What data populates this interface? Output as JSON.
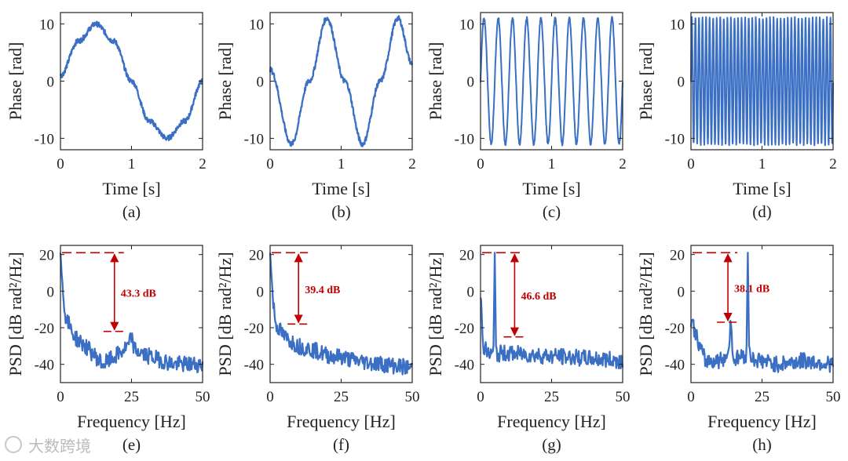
{
  "watermark": {
    "text": "大数跨境",
    "icon": "logo-badge-icon"
  },
  "colors": {
    "line": "#3a6fc4",
    "annotation": "#c00000",
    "axis": "#222222"
  },
  "chart_data": [
    {
      "type": "line",
      "caption": "(a)",
      "xlabel": "Time [s]",
      "ylabel": "Phase [rad]",
      "xlim": [
        0,
        2
      ],
      "ylim": [
        -12,
        12
      ],
      "xticks": [
        "0",
        "1",
        "2"
      ],
      "yticks": [
        "10",
        "0",
        "-10"
      ],
      "series": [
        {
          "x": [
            0,
            0.25,
            0.5,
            0.75,
            1.0,
            1.25,
            1.5,
            1.75,
            2.0
          ],
          "y": [
            1,
            7,
            10,
            7,
            0,
            -7,
            -10,
            -7,
            0
          ]
        }
      ],
      "grid": false
    },
    {
      "type": "line",
      "caption": "(b)",
      "xlabel": "Time [s]",
      "ylabel": "Phase [rad]",
      "xlim": [
        0,
        2
      ],
      "ylim": [
        -12,
        12
      ],
      "xticks": [
        "0",
        "1",
        "2"
      ],
      "yticks": [
        "10",
        "0",
        "-10"
      ],
      "series": [
        {
          "x": [
            0,
            0.3,
            0.55,
            0.8,
            1.05,
            1.3,
            1.55,
            1.8,
            2.0
          ],
          "y": [
            2,
            -11,
            0,
            11,
            0,
            -11,
            0,
            11,
            3
          ]
        }
      ],
      "grid": false
    },
    {
      "type": "line",
      "caption": "(c)",
      "xlabel": "Time [s]",
      "ylabel": "Phase [rad]",
      "xlim": [
        0,
        2
      ],
      "ylim": [
        -12,
        12
      ],
      "xticks": [
        "0",
        "1",
        "2"
      ],
      "yticks": [
        "10",
        "0",
        "-10"
      ],
      "series": [
        {
          "x": [
            0,
            0.5,
            1.0,
            1.5,
            2.0
          ],
          "y": [
            0,
            0,
            0,
            0,
            0
          ],
          "cycles": 10,
          "amplitude": 11
        }
      ],
      "grid": false
    },
    {
      "type": "line",
      "caption": "(d)",
      "xlabel": "Time [s]",
      "ylabel": "Phase [rad]",
      "xlim": [
        0,
        2
      ],
      "ylim": [
        -12,
        12
      ],
      "xticks": [
        "0",
        "1",
        "2"
      ],
      "yticks": [
        "10",
        "0",
        "-10"
      ],
      "series": [
        {
          "x": [
            0,
            0.5,
            1.0,
            1.5,
            2.0
          ],
          "y": [
            0,
            0,
            0,
            0,
            0
          ],
          "cycles": 40,
          "amplitude": 11
        }
      ],
      "grid": false
    },
    {
      "type": "line",
      "caption": "(e)",
      "xlabel": "Frequency [Hz]",
      "ylabel": "PSD [dB rad²/Hz]",
      "xlim": [
        0,
        50
      ],
      "ylim": [
        -50,
        25
      ],
      "xticks": [
        "0",
        "25",
        "50"
      ],
      "yticks": [
        "20",
        "0",
        "-20",
        "-40"
      ],
      "series": [
        {
          "x": [
            0,
            1,
            2,
            5,
            10,
            15,
            20,
            24,
            25,
            26,
            30,
            40,
            50
          ],
          "y": [
            21,
            -5,
            -15,
            -25,
            -32,
            -40,
            -35,
            -30,
            -25,
            -32,
            -35,
            -40,
            -40
          ]
        }
      ],
      "annotation": {
        "text": "43.3 dB",
        "top": 21,
        "bottom": -22,
        "x": 19
      },
      "grid": false
    },
    {
      "type": "line",
      "caption": "(f)",
      "xlabel": "Frequency [Hz]",
      "ylabel": "PSD [dB rad²/Hz]",
      "xlim": [
        0,
        50
      ],
      "ylim": [
        -50,
        25
      ],
      "xticks": [
        "0",
        "25",
        "50"
      ],
      "yticks": [
        "20",
        "0",
        "-20",
        "-40"
      ],
      "series": [
        {
          "x": [
            0,
            1,
            2,
            5,
            10,
            15,
            20,
            25,
            30,
            40,
            50
          ],
          "y": [
            21,
            -5,
            -18,
            -25,
            -30,
            -32,
            -35,
            -36,
            -38,
            -40,
            -42
          ]
        }
      ],
      "annotation": {
        "text": "39.4 dB",
        "top": 21,
        "bottom": -18,
        "x": 10
      },
      "grid": false
    },
    {
      "type": "line",
      "caption": "(g)",
      "xlabel": "Frequency [Hz]",
      "ylabel": "PSD [dB rad²/Hz]",
      "xlim": [
        0,
        50
      ],
      "ylim": [
        -50,
        25
      ],
      "xticks": [
        "0",
        "25",
        "50"
      ],
      "yticks": [
        "20",
        "0",
        "-20",
        "-40"
      ],
      "series": [
        {
          "x": [
            0,
            1,
            3,
            4.5,
            5,
            5.5,
            7,
            10,
            20,
            30,
            40,
            50
          ],
          "y": [
            0,
            -30,
            -35,
            -35,
            21,
            -35,
            -34,
            -34,
            -35,
            -36,
            -37,
            -38
          ]
        }
      ],
      "annotation": {
        "text": "46.6 dB",
        "top": 21,
        "bottom": -25,
        "x": 12
      },
      "grid": false
    },
    {
      "type": "line",
      "caption": "(h)",
      "xlabel": "Frequency [Hz]",
      "ylabel": "PSD [dB rad²/Hz]",
      "xlim": [
        0,
        50
      ],
      "ylim": [
        -50,
        25
      ],
      "xticks": [
        "0",
        "25",
        "50"
      ],
      "yticks": [
        "20",
        "0",
        "-20",
        "-40"
      ],
      "series": [
        {
          "x": [
            0,
            1,
            3,
            5,
            10,
            13,
            14,
            15,
            18,
            19.5,
            20,
            20.5,
            22,
            30,
            40,
            50
          ],
          "y": [
            -15,
            -20,
            -30,
            -38,
            -38,
            -35,
            -17,
            -38,
            -35,
            -35,
            21,
            -35,
            -37,
            -40,
            -38,
            -40
          ]
        }
      ],
      "annotation": {
        "text": "38.1 dB",
        "top": 21,
        "bottom": -17,
        "x": 13
      },
      "grid": false
    }
  ]
}
